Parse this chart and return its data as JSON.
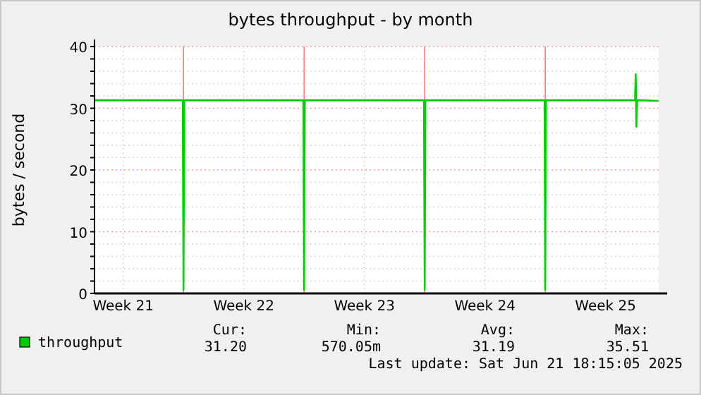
{
  "chart_data": {
    "type": "line",
    "title": "bytes throughput - by month",
    "ylabel": "bytes / second",
    "x": [
      "2025-05-20T20:00",
      "2025-05-25T23:00",
      "2025-05-26T00:00",
      "2025-05-26T01:00",
      "2025-06-01T23:00",
      "2025-06-02T00:00",
      "2025-06-02T01:00",
      "2025-06-08T23:00",
      "2025-06-09T00:00",
      "2025-06-09T01:00",
      "2025-06-15T23:00",
      "2025-06-16T00:00",
      "2025-06-16T01:00",
      "2025-06-21T05:00",
      "2025-06-21T06:00",
      "2025-06-21T07:00",
      "2025-06-21T08:00",
      "2025-06-22T14:00"
    ],
    "series": [
      {
        "name": "throughput",
        "color": "#00cc00",
        "values": [
          31.3,
          31.3,
          0.57,
          31.3,
          31.3,
          0.57,
          31.3,
          31.3,
          0.57,
          31.3,
          31.3,
          0.57,
          31.3,
          31.3,
          35.51,
          27,
          31.3,
          31.2
        ]
      }
    ],
    "xlim": [
      "2025-05-20T20:00",
      "2025-06-22T14:00"
    ],
    "xticks": [
      {
        "value": "2025-05-22T12:00",
        "label": "Week 21"
      },
      {
        "value": "2025-05-26T00:00",
        "label": null
      },
      {
        "value": "2025-05-29T12:00",
        "label": "Week 22"
      },
      {
        "value": "2025-06-02T00:00",
        "label": null
      },
      {
        "value": "2025-06-05T12:00",
        "label": "Week 23"
      },
      {
        "value": "2025-06-09T00:00",
        "label": null
      },
      {
        "value": "2025-06-12T12:00",
        "label": "Week 24"
      },
      {
        "value": "2025-06-16T00:00",
        "label": null
      },
      {
        "value": "2025-06-19T12:00",
        "label": "Week 25"
      }
    ],
    "ylim": [
      0,
      40
    ],
    "yticks": [
      0,
      {
        "value": 2,
        "label": null
      },
      {
        "value": 4,
        "label": null
      },
      {
        "value": 6,
        "label": null
      },
      {
        "value": 8,
        "label": null
      },
      10,
      {
        "value": 12,
        "label": null
      },
      {
        "value": 14,
        "label": null
      },
      {
        "value": 16,
        "label": null
      },
      {
        "value": 18,
        "label": null
      },
      20,
      {
        "value": 22,
        "label": null
      },
      {
        "value": 24,
        "label": null
      },
      {
        "value": 26,
        "label": null
      },
      {
        "value": 28,
        "label": null
      },
      30,
      {
        "value": 32,
        "label": null
      },
      {
        "value": 34,
        "label": null
      },
      {
        "value": 36,
        "label": null
      },
      {
        "value": 38,
        "label": null
      },
      40
    ],
    "grid": true,
    "legend": "bottom left",
    "line_style": "solid",
    "annotations": [
      "Cur:",
      "Min:",
      "Avg:",
      "Max:",
      "31.20",
      "570.05m",
      "31.19",
      "35.51",
      "Last update: Sat Jun 21 18:15:05 2025"
    ]
  }
}
